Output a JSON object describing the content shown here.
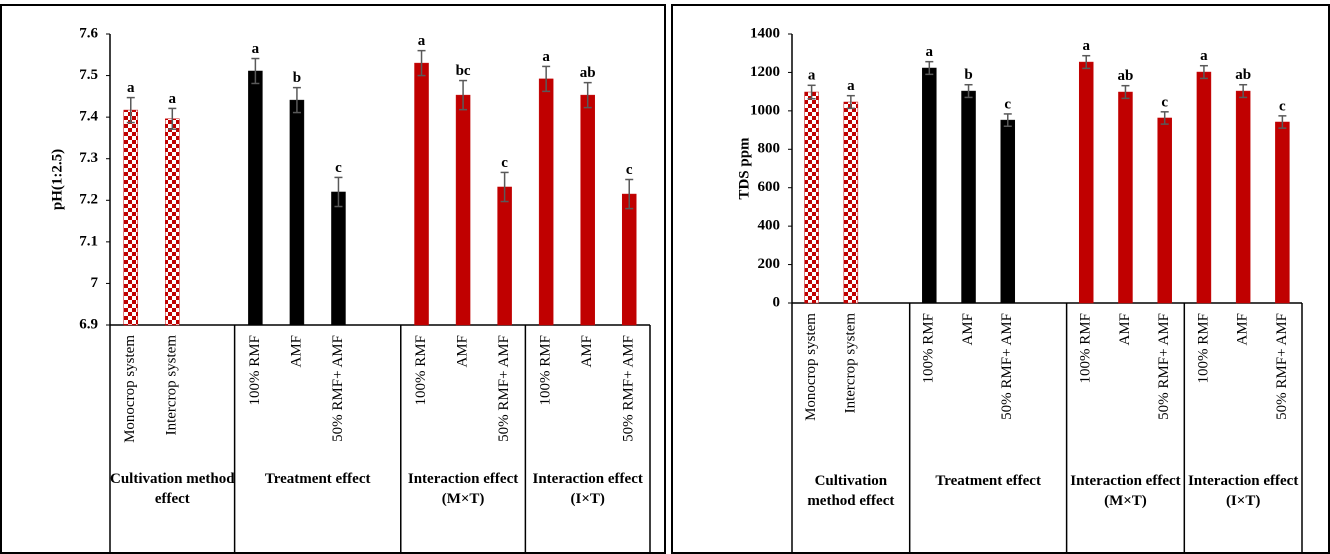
{
  "chart_data": [
    {
      "type": "bar",
      "y_label": "pH(1:2.5)",
      "ylim": [
        6.9,
        7.6
      ],
      "yticks": [
        6.9,
        7,
        7.1,
        7.2,
        7.3,
        7.4,
        7.5,
        7.6
      ],
      "groups": [
        {
          "label": "Cultivation method effect",
          "color": "#c00000",
          "pattern": "checker",
          "categories": [
            "Monocrop system",
            "Intercrop system",
            null
          ],
          "values": [
            7.417,
            7.396,
            null
          ],
          "errors": [
            0.03,
            0.025,
            null
          ],
          "letters": [
            "a",
            "a",
            null
          ]
        },
        {
          "label": "Treatment effect",
          "color": "#000000",
          "categories": [
            "100% RMF",
            "AMF",
            "50% RMF+ AMF",
            null
          ],
          "values": [
            7.511,
            7.441,
            7.22,
            null
          ],
          "errors": [
            0.03,
            0.03,
            0.035,
            null
          ],
          "letters": [
            "a",
            "b",
            "c",
            null
          ]
        },
        {
          "label": "Interaction effect (M×T)",
          "color": "#c00000",
          "categories": [
            "100% RMF",
            "AMF",
            "50% RMF+ AMF"
          ],
          "values": [
            7.53,
            7.453,
            7.232
          ],
          "errors": [
            0.03,
            0.035,
            0.035
          ],
          "letters": [
            "a",
            "bc",
            "c"
          ]
        },
        {
          "label": "Interaction effect (I×T)",
          "color": "#c00000",
          "categories": [
            "100% RMF",
            "AMF",
            "50% RMF+ AMF"
          ],
          "values": [
            7.492,
            7.453,
            7.215
          ],
          "errors": [
            0.03,
            0.03,
            0.035
          ],
          "letters": [
            "a",
            "ab",
            "c"
          ]
        }
      ]
    },
    {
      "type": "bar",
      "y_label": "TDS  ppm",
      "ylim": [
        0,
        1400
      ],
      "yticks": [
        0,
        200,
        400,
        600,
        800,
        1000,
        1200,
        1400
      ],
      "groups": [
        {
          "label": "Cultivation method effect",
          "color": "#c00000",
          "pattern": "checker",
          "categories": [
            "Monocrop system",
            "Intercrop system",
            null
          ],
          "values": [
            1098,
            1046,
            null
          ],
          "errors": [
            35,
            33,
            null
          ],
          "letters": [
            "a",
            "a",
            null
          ]
        },
        {
          "label": "Treatment effect",
          "color": "#000000",
          "categories": [
            "100% RMF",
            "AMF",
            "50% RMF+ AMF",
            null
          ],
          "values": [
            1223,
            1103,
            952,
            null
          ],
          "errors": [
            33,
            33,
            32,
            null
          ],
          "letters": [
            "a",
            "b",
            "c",
            null
          ]
        },
        {
          "label": "Interaction effect (M×T)",
          "color": "#c00000",
          "categories": [
            "100% RMF",
            "AMF",
            "50% RMF+ AMF"
          ],
          "values": [
            1254,
            1098,
            963
          ],
          "errors": [
            33,
            33,
            32
          ],
          "letters": [
            "a",
            "ab",
            "c"
          ]
        },
        {
          "label": "Interaction effect (I×T)",
          "color": "#c00000",
          "categories": [
            "100% RMF",
            "AMF",
            "50% RMF+ AMF"
          ],
          "values": [
            1202,
            1103,
            942
          ],
          "errors": [
            33,
            33,
            32
          ],
          "letters": [
            "a",
            "ab",
            "c"
          ]
        }
      ]
    }
  ]
}
